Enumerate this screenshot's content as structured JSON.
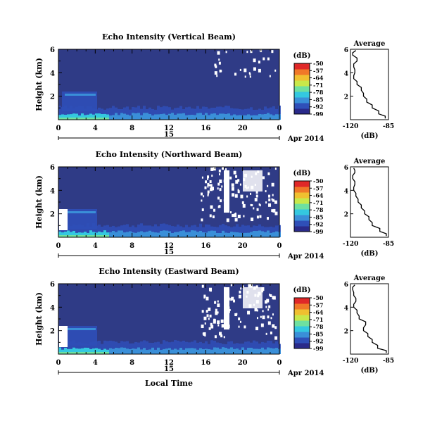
{
  "panels": [
    {
      "title": "Echo Intensity (Vertical Beam)",
      "seed": 3
    },
    {
      "title": "Echo Intensity (Northward Beam)",
      "seed": 7
    },
    {
      "title": "Echo Intensity (Eastward Beam)",
      "seed": 11
    }
  ],
  "common": {
    "ylabel": "Height (km)",
    "yticks": [
      "6",
      "4",
      "2"
    ],
    "xticks": [
      "0",
      "4",
      "8",
      "12",
      "16",
      "20",
      "0"
    ],
    "date_day": "15",
    "date_label": "Apr 2014",
    "colorbar_unit": "(dB)",
    "colorbar_ticks": [
      "-50",
      "-57",
      "-64",
      "-71",
      "-78",
      "-85",
      "-92",
      "-99"
    ],
    "avg_title": "Average",
    "avg_yticks": [
      "6",
      "4",
      "2"
    ],
    "avg_xticks": [
      "-120",
      "-85"
    ],
    "avg_xlabel": "(dB)",
    "xlabel_bottom": "Local Time"
  },
  "colors": {
    "background_echo": "#2f3b86",
    "colormap": [
      "#2a2a8a",
      "#2f4fb8",
      "#3a8fd8",
      "#34c8e0",
      "#6ee0a0",
      "#c8e84a",
      "#f0c030",
      "#f07828",
      "#e02828"
    ]
  },
  "chart_data": [
    {
      "type": "heatmap",
      "title": "Echo Intensity (Vertical Beam)",
      "ylabel": "Height (km)",
      "xlabel": "",
      "x_range_hours": [
        0,
        24
      ],
      "y_range_km": [
        0,
        6
      ],
      "colorbar_range_db": [
        -99,
        -50
      ],
      "average_profile": {
        "title": "Average",
        "xlim_db": [
          -120,
          -85
        ],
        "height_km": [
          0.1,
          0.5,
          1.0,
          1.5,
          2.0,
          2.5,
          3.0,
          3.5,
          4.0,
          4.5,
          5.0,
          5.5,
          5.9
        ],
        "db": [
          -88,
          -94,
          -100,
          -105,
          -108,
          -110,
          -114,
          -117,
          -116,
          -117,
          -114,
          -118,
          -115
        ]
      }
    },
    {
      "type": "heatmap",
      "title": "Echo Intensity (Northward Beam)",
      "ylabel": "Height (km)",
      "xlabel": "",
      "x_range_hours": [
        0,
        24
      ],
      "y_range_km": [
        0,
        6
      ],
      "colorbar_range_db": [
        -99,
        -50
      ],
      "average_profile": {
        "title": "Average",
        "xlim_db": [
          -120,
          -85
        ],
        "height_km": [
          0.1,
          0.5,
          1.0,
          1.5,
          2.0,
          2.5,
          3.0,
          3.5,
          4.0,
          4.5,
          5.0,
          5.5,
          5.9
        ],
        "db": [
          -87,
          -93,
          -100,
          -103,
          -107,
          -110,
          -113,
          -115,
          -117,
          -116,
          -118,
          -116,
          -117
        ]
      }
    },
    {
      "type": "heatmap",
      "title": "Echo Intensity (Eastward Beam)",
      "ylabel": "Height (km)",
      "xlabel": "Local Time",
      "x_range_hours": [
        0,
        24
      ],
      "y_range_km": [
        0,
        6
      ],
      "colorbar_range_db": [
        -99,
        -50
      ],
      "average_profile": {
        "title": "Average",
        "xlim_db": [
          -120,
          -85
        ],
        "height_km": [
          0.1,
          0.5,
          1.0,
          1.5,
          2.0,
          2.5,
          3.0,
          3.5,
          4.0,
          4.5,
          5.0,
          5.5,
          5.9
        ],
        "db": [
          -87,
          -95,
          -100,
          -104,
          -108,
          -106,
          -112,
          -114,
          -117,
          -115,
          -117,
          -118,
          -116
        ]
      }
    }
  ]
}
